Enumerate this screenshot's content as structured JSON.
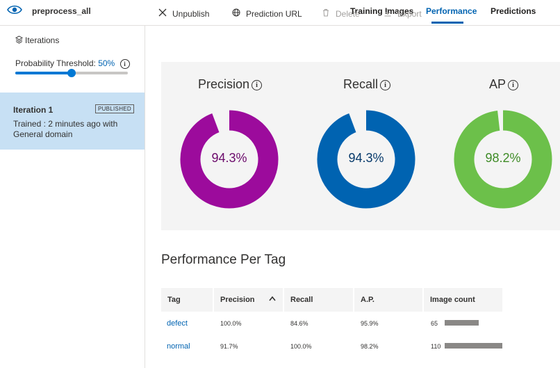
{
  "header": {
    "project_name": "preprocess_all",
    "tabs": [
      {
        "label": "Training Images"
      },
      {
        "label": "Performance"
      },
      {
        "label": "Predictions"
      }
    ],
    "active_tab": "Performance"
  },
  "sidebar": {
    "iterations_label": "Iterations",
    "threshold_label": "Probability Threshold:",
    "threshold_value": "50%",
    "threshold_fraction": 0.5,
    "iteration": {
      "name": "Iteration 1",
      "badge": "PUBLISHED",
      "trained": "Trained : 2 minutes ago with",
      "domain": "General domain"
    }
  },
  "toolbar": {
    "unpublish": "Unpublish",
    "prediction_url": "Prediction URL",
    "delete": "Delete",
    "export": "Export"
  },
  "metrics": [
    {
      "title": "Precision",
      "value_text": "94.3%",
      "value": 0.943,
      "color": "#9c0b9c"
    },
    {
      "title": "Recall",
      "value_text": "94.3%",
      "value": 0.943,
      "color": "#0063b1"
    },
    {
      "title": "AP",
      "value_text": "98.2%",
      "value": 0.982,
      "color": "#6cc04a"
    }
  ],
  "metric_text_colors": [
    "#6b0a6b",
    "#073a6b",
    "#3e8b26"
  ],
  "per_tag": {
    "title": "Performance Per Tag",
    "columns": [
      "Tag",
      "Precision",
      "Recall",
      "A.P.",
      "Image count"
    ],
    "rows": [
      {
        "tag": "defect",
        "precision": "100.0%",
        "recall": "84.6%",
        "ap": "95.9%",
        "count": "65",
        "count_num": 65
      },
      {
        "tag": "normal",
        "precision": "91.7%",
        "recall": "100.0%",
        "ap": "98.2%",
        "count": "110",
        "count_num": 110
      }
    ],
    "max_count": 110
  },
  "icons": {
    "eye": "eye-icon",
    "iterations": "layers-icon",
    "unpublish": "close-icon",
    "prediction_url": "globe-icon",
    "delete": "trash-icon",
    "export": "download-icon",
    "sort": "sort-ascending-icon",
    "info": "info-icon"
  }
}
